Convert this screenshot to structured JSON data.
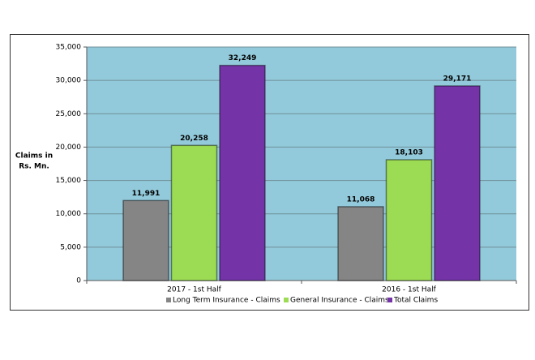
{
  "chart_data": {
    "type": "bar",
    "ylabel_lines": [
      "Claims in",
      "Rs. Mn."
    ],
    "categories": [
      "2017 - 1st Half",
      "2016 - 1st Half"
    ],
    "series": [
      {
        "name": "Long Term Insurance - Claims",
        "color": "#858585",
        "values": [
          11991,
          11068
        ],
        "value_labels": [
          "11,991",
          "11,068"
        ]
      },
      {
        "name": "General Insurance - Claims",
        "color": "#9cdc54",
        "values": [
          20258,
          18103
        ],
        "value_labels": [
          "20,258",
          "18,103"
        ]
      },
      {
        "name": "Total Claims",
        "color": "#7434a8",
        "values": [
          32249,
          29171
        ],
        "value_labels": [
          "32,249",
          "29,171"
        ]
      }
    ],
    "ylim": [
      0,
      35000
    ],
    "yticks": [
      0,
      {
        "value": 5000,
        "label": "5,000"
      },
      {
        "value": 10000,
        "label": "10,000"
      },
      {
        "value": 15000,
        "label": "15,000"
      },
      {
        "value": 20000,
        "label": "20,000"
      },
      {
        "value": 25000,
        "label": "25,000"
      },
      {
        "value": 30000,
        "label": "30,000"
      },
      {
        "value": 35000,
        "label": "35,000"
      }
    ],
    "grid": true,
    "plot_background": "#93cadb",
    "legend": "bottom"
  }
}
